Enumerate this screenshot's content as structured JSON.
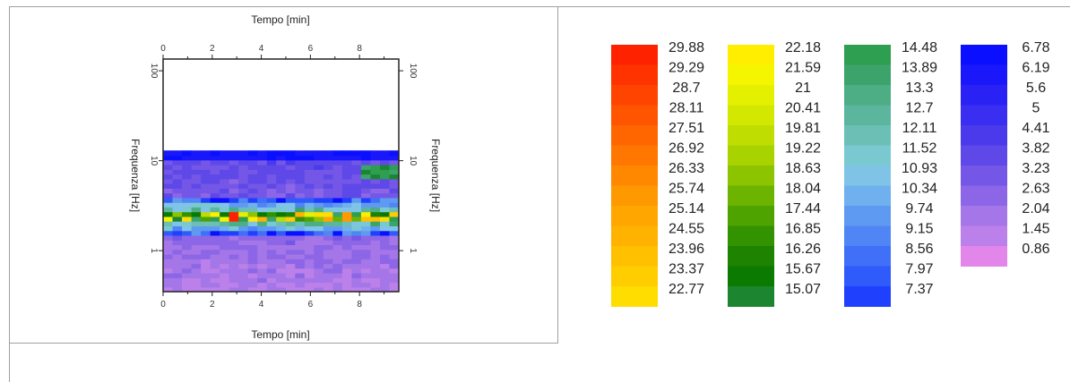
{
  "chart_data": {
    "type": "heatmap",
    "x_axis": {
      "label": "Tempo [min]",
      "ticks": [
        "0",
        "2",
        "4",
        "6",
        "8"
      ],
      "range": [
        0,
        9.6
      ],
      "position": "top and bottom"
    },
    "y_axis": {
      "label": "Frequenza [Hz]",
      "scale": "log",
      "ticks": [
        "1",
        "10",
        "100"
      ],
      "range": [
        0.35,
        135
      ],
      "position": "left and right"
    },
    "grid": false,
    "data_extent": {
      "frequency_hz": [
        0.35,
        13
      ]
    },
    "features": [
      {
        "note": "strong band",
        "frequency_hz": 2.4,
        "time_min": [
          0,
          9.6
        ]
      },
      {
        "note": "peak",
        "frequency_hz": 2.4,
        "time_min": 2.9,
        "value": 29.9
      },
      {
        "note": "band",
        "frequency_hz": 7.5,
        "time_min": [
          8,
          9.6
        ]
      }
    ],
    "colorbar": {
      "columns": [
        {
          "labels": [
            "29.88",
            "29.29",
            "28.7",
            "28.11",
            "27.51",
            "26.92",
            "26.33",
            "25.74",
            "25.14",
            "24.55",
            "23.96",
            "23.37",
            "22.77"
          ],
          "colors": [
            "#ff2200",
            "#ff3300",
            "#ff4400",
            "#ff5500",
            "#ff6600",
            "#ff7700",
            "#ff8800",
            "#ff9900",
            "#ffa600",
            "#ffb300",
            "#ffc000",
            "#ffcd00",
            "#ffdd00"
          ]
        },
        {
          "labels": [
            "22.18",
            "21.59",
            "21",
            "20.41",
            "19.81",
            "19.22",
            "18.63",
            "18.04",
            "17.44",
            "16.85",
            "16.26",
            "15.67",
            "15.07"
          ],
          "colors": [
            "#ffee00",
            "#f5f500",
            "#e5f000",
            "#d2e800",
            "#bfdd00",
            "#a8d200",
            "#8cc400",
            "#6cb400",
            "#4fa300",
            "#339200",
            "#1d8300",
            "#0b7a00",
            "#1b8530"
          ]
        },
        {
          "labels": [
            "14.48",
            "13.89",
            "13.3",
            "12.7",
            "12.11",
            "11.52",
            "10.93",
            "10.34",
            "9.74",
            "9.15",
            "8.56",
            "7.97",
            "7.37"
          ],
          "colors": [
            "#2e9e50",
            "#3ca46a",
            "#4dad85",
            "#5cb59d",
            "#6cbfb5",
            "#7ac9d0",
            "#7fc4e6",
            "#6fb0ef",
            "#5f9af2",
            "#4f85f5",
            "#3f70f7",
            "#2f5bfa",
            "#1f40fc"
          ]
        },
        {
          "labels": [
            "6.78",
            "6.19",
            "5.6",
            "5",
            "4.41",
            "3.82",
            "3.23",
            "2.63",
            "2.04",
            "1.45",
            "0.86"
          ],
          "colors": [
            "#0a10ff",
            "#1a18fa",
            "#2a22f5",
            "#3a2ef0",
            "#4a3aeb",
            "#5e48e8",
            "#7457e6",
            "#8c66e6",
            "#a476e8",
            "#bc80ea",
            "#e286ea"
          ]
        }
      ]
    }
  }
}
